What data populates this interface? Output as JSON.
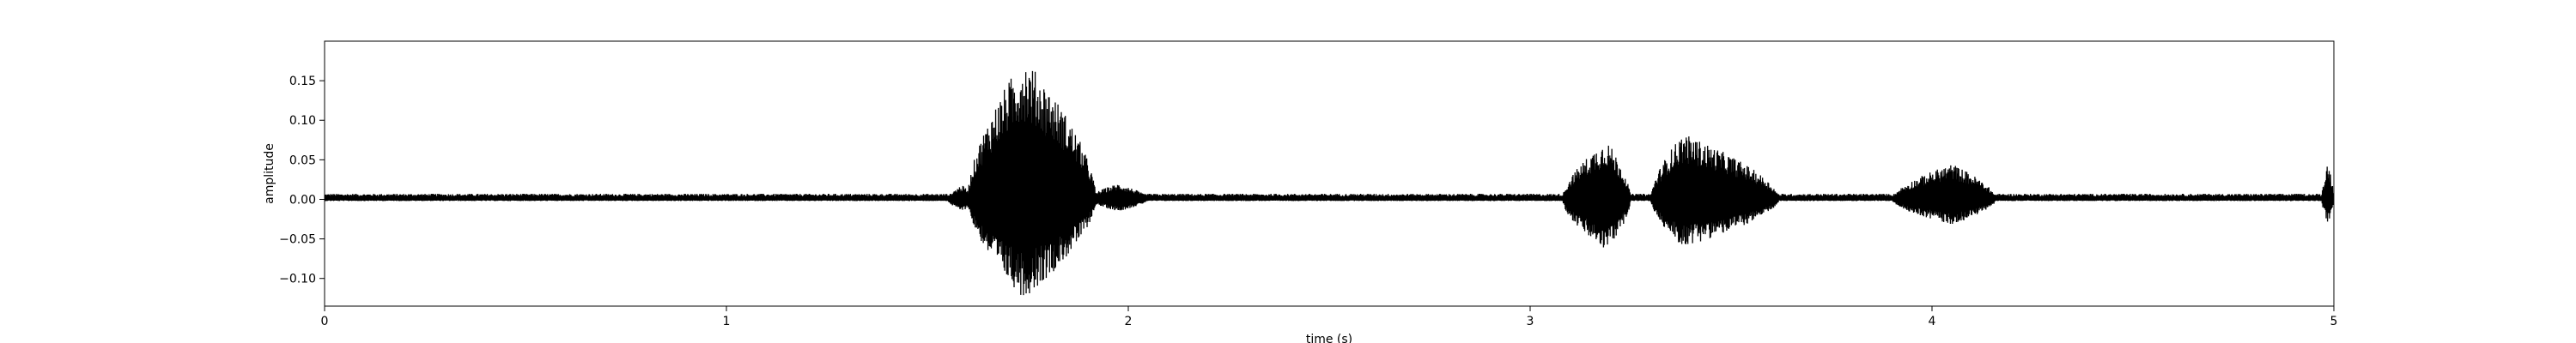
{
  "chart_data": {
    "type": "line",
    "title": "",
    "xlabel": "time (s)",
    "ylabel": "amplitude",
    "xlim": [
      0,
      5
    ],
    "ylim": [
      -0.135,
      0.2
    ],
    "xticks": [
      0,
      1,
      2,
      3,
      4,
      5
    ],
    "xtick_labels": [
      "0",
      "1",
      "2",
      "3",
      "4",
      "5"
    ],
    "yticks": [
      -0.1,
      -0.05,
      0.0,
      0.05,
      0.1,
      0.15
    ],
    "ytick_labels": [
      "−0.10",
      "−0.05",
      "0.00",
      "0.05",
      "0.10",
      "0.15"
    ],
    "grid": false,
    "line_color": "#000000",
    "series": [
      {
        "sample_rate_hz": 1200,
        "noise_floor": 0.007,
        "segments": [
          {
            "start": 1.55,
            "end": 1.62,
            "peak_pos": 0.018,
            "peak_neg": -0.015
          },
          {
            "start": 1.6,
            "end": 1.92,
            "peak_pos": 0.18,
            "peak_neg": -0.125,
            "peak_time": 1.74
          },
          {
            "start": 1.9,
            "end": 2.05,
            "peak_pos": 0.02,
            "peak_neg": -0.015
          },
          {
            "start": 3.08,
            "end": 3.25,
            "peak_pos": 0.075,
            "peak_neg": -0.065,
            "peak_time": 3.19
          },
          {
            "start": 3.3,
            "end": 3.62,
            "peak_pos": 0.083,
            "peak_neg": -0.06,
            "peak_time": 3.38
          },
          {
            "start": 3.9,
            "end": 4.16,
            "peak_pos": 0.045,
            "peak_neg": -0.032,
            "peak_time": 4.05
          },
          {
            "start": 4.97,
            "end": 5.0,
            "peak_pos": 0.048,
            "peak_neg": -0.03
          }
        ]
      }
    ]
  }
}
